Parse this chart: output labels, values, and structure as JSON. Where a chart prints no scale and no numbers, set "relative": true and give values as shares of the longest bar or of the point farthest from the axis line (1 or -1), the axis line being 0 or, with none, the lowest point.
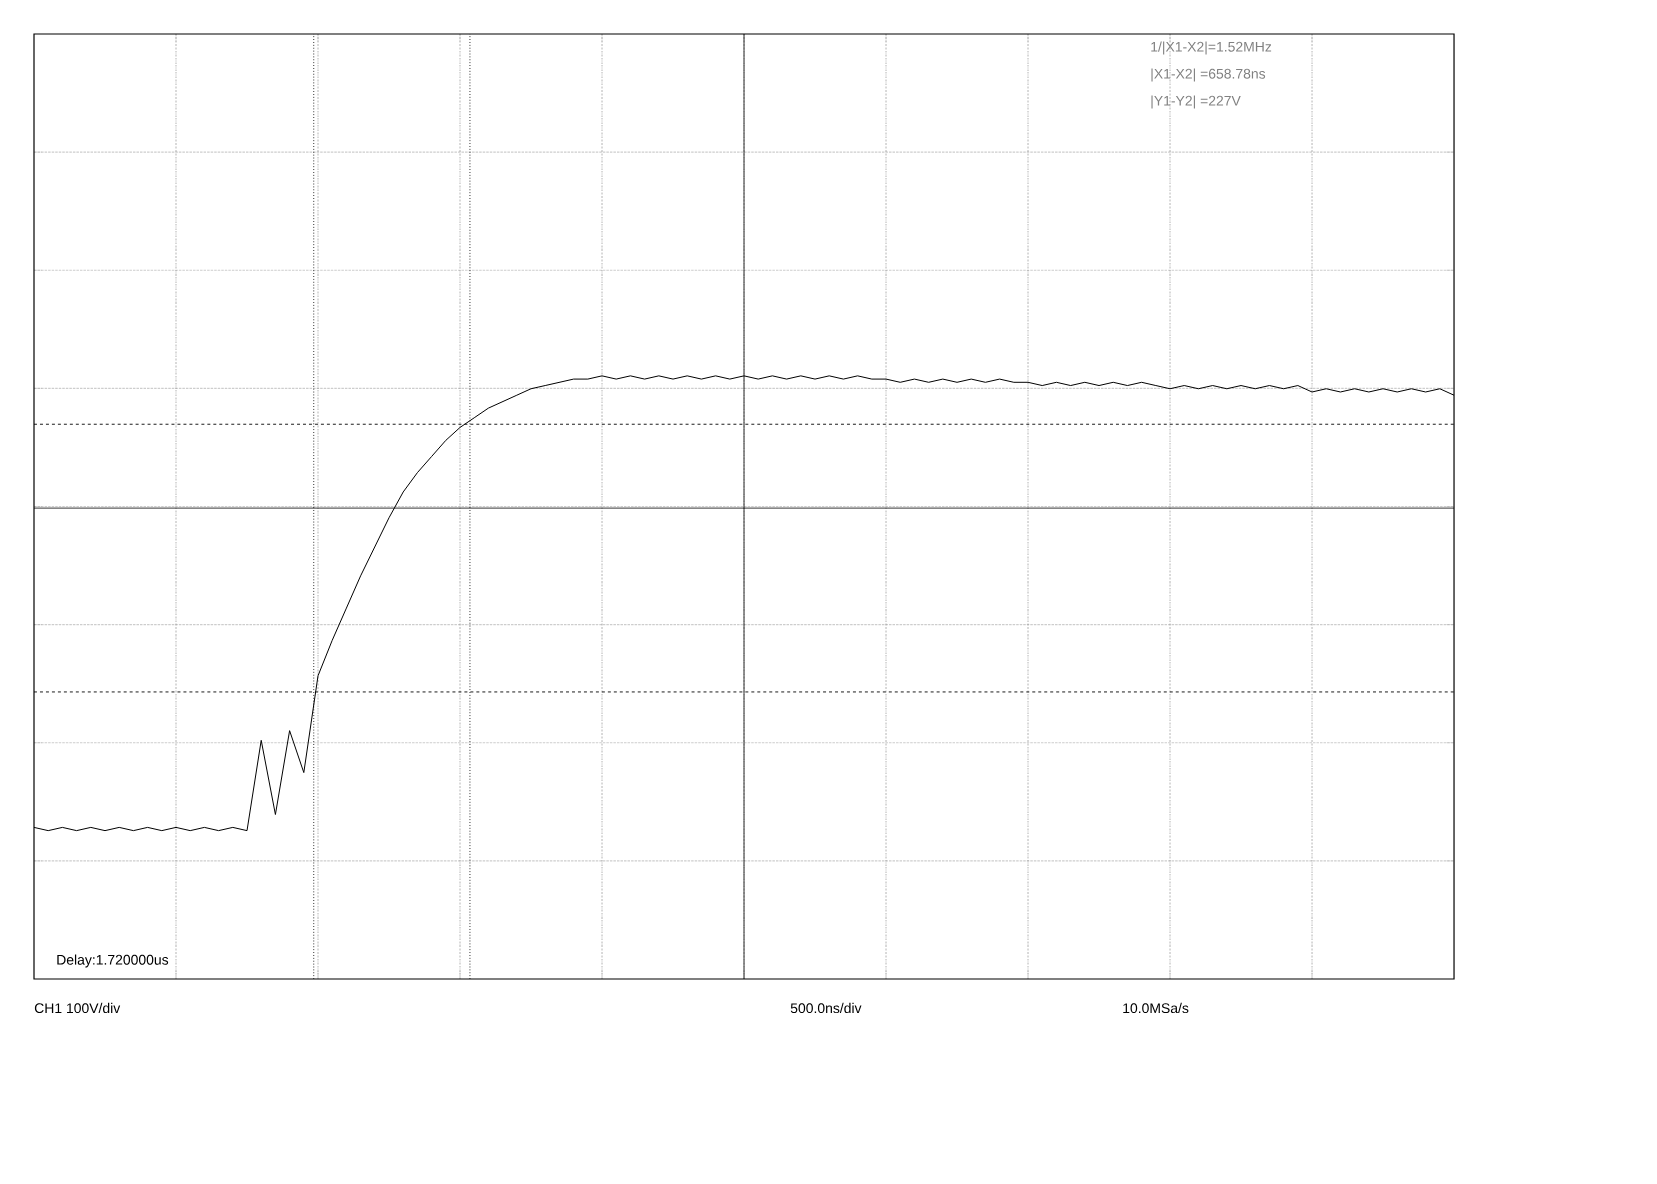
{
  "chart_data": {
    "type": "line",
    "relative": true,
    "grid": true,
    "marker": "none",
    "line_style": "solid",
    "categories": [
      null,
      null,
      null,
      null,
      null,
      null,
      null,
      null,
      null,
      null,
      null,
      null,
      null,
      null,
      null,
      null,
      null,
      null,
      null,
      null,
      null,
      null,
      null,
      null,
      null,
      null,
      null,
      null,
      null,
      null,
      null,
      null,
      null,
      null,
      null,
      null,
      null,
      null,
      null,
      null,
      null,
      null,
      null,
      null,
      null,
      null,
      null,
      null,
      null,
      null,
      null,
      null,
      null,
      null,
      null,
      null,
      null,
      null,
      null,
      null,
      null,
      null,
      null,
      null,
      null,
      null,
      null,
      null,
      null,
      null,
      null,
      null,
      null,
      null,
      null,
      null,
      null,
      null,
      null,
      null,
      null,
      null,
      null,
      null,
      null,
      null,
      null,
      null,
      null,
      null,
      null,
      null,
      null,
      null,
      null,
      null,
      null,
      null,
      null,
      null,
      null
    ],
    "series": [
      {
        "color": "#000000",
        "values": [
          -0.99,
          -1.0,
          -0.99,
          -1.0,
          -0.99,
          -1.0,
          -0.99,
          -1.0,
          -0.99,
          -1.0,
          -0.99,
          -1.0,
          -0.99,
          -1.0,
          -0.99,
          -1.0,
          -0.72,
          -0.95,
          -0.69,
          -0.82,
          -0.52,
          -0.41,
          -0.31,
          -0.21,
          -0.12,
          -0.03,
          0.05,
          0.11,
          0.16,
          0.21,
          0.25,
          0.28,
          0.31,
          0.33,
          0.35,
          0.37,
          0.38,
          0.39,
          0.4,
          0.4,
          0.41,
          0.4,
          0.41,
          0.4,
          0.41,
          0.4,
          0.41,
          0.4,
          0.41,
          0.4,
          0.41,
          0.4,
          0.41,
          0.4,
          0.41,
          0.4,
          0.41,
          0.4,
          0.41,
          0.4,
          0.4,
          0.39,
          0.4,
          0.39,
          0.4,
          0.39,
          0.4,
          0.39,
          0.4,
          0.39,
          0.39,
          0.38,
          0.39,
          0.38,
          0.39,
          0.38,
          0.39,
          0.38,
          0.39,
          0.38,
          0.37,
          0.38,
          0.37,
          0.38,
          0.37,
          0.38,
          0.37,
          0.38,
          0.37,
          0.38,
          0.36,
          0.37,
          0.36,
          0.37,
          0.36,
          0.37,
          0.36,
          0.37,
          0.36,
          0.37,
          0.35
        ]
      }
    ],
    "ref_lines": [
      {
        "axis": "y",
        "value": 0.26,
        "line_style": "dashed",
        "color": "#000000"
      },
      {
        "axis": "y",
        "value": -0.57,
        "line_style": "dashed",
        "color": "#000000"
      }
    ],
    "annotations": [
      "1/|X1-X2|=1.52MHz",
      "|X1-X2| =658.78ns",
      "|Y1-Y2| =227V",
      "Delay:1.720000us",
      "CH1 100V/div",
      "500.0ns/div",
      "10.0MSa/s"
    ]
  }
}
